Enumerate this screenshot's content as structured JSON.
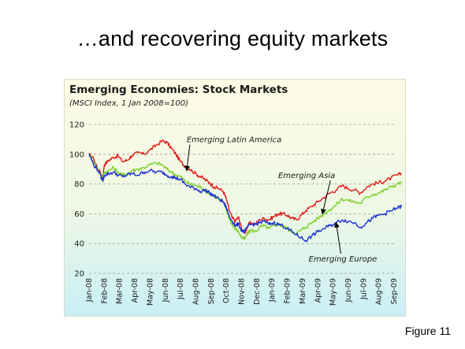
{
  "slide": {
    "title": "…and recovering equity markets",
    "figure_label": "Figure 11"
  },
  "colors": {
    "latin_america": "#e01a1a",
    "asia": "#7fcf2a",
    "europe": "#1a2fd0",
    "grid": "#9a9a9a"
  },
  "chart_data": {
    "type": "line",
    "title": "Emerging Economies: Stock Markets",
    "subtitle": "(MSCI Index, 1 Jan 2008=100)",
    "ylim": [
      20,
      120
    ],
    "yticks": [
      20,
      40,
      60,
      80,
      100,
      120
    ],
    "grid": true,
    "categories": [
      "Jan-08",
      "Feb-08",
      "Mar-08",
      "Apr-08",
      "May-08",
      "Jun-08",
      "Jul-08",
      "Aug-08",
      "Sep-08",
      "Oct-08",
      "Nov-08",
      "Dec-08",
      "Jan-09",
      "Feb-09",
      "Mar-09",
      "Apr-09",
      "May-09",
      "Jun-09",
      "Jul-09",
      "Aug-09",
      "Sep-09"
    ],
    "series": [
      {
        "name": "Emerging Latin America",
        "color_key": "latin_america",
        "values": [
          [
            0,
            100
          ],
          [
            0.3,
            97
          ],
          [
            0.6,
            90
          ],
          [
            0.9,
            85
          ],
          [
            1.0,
            93
          ],
          [
            1.3,
            96
          ],
          [
            1.6,
            98
          ],
          [
            1.9,
            99
          ],
          [
            2.2,
            95
          ],
          [
            2.5,
            96
          ],
          [
            2.8,
            99
          ],
          [
            3.2,
            101
          ],
          [
            3.6,
            100
          ],
          [
            4.0,
            103
          ],
          [
            4.4,
            106
          ],
          [
            4.8,
            109
          ],
          [
            5.1,
            108
          ],
          [
            5.4,
            104
          ],
          [
            5.7,
            100
          ],
          [
            6.0,
            95
          ],
          [
            6.3,
            92
          ],
          [
            6.6,
            90
          ],
          [
            7.0,
            87
          ],
          [
            7.3,
            85
          ],
          [
            7.6,
            83
          ],
          [
            7.9,
            81
          ],
          [
            8.2,
            78
          ],
          [
            8.5,
            77
          ],
          [
            8.8,
            75
          ],
          [
            9.0,
            70
          ],
          [
            9.2,
            62
          ],
          [
            9.4,
            57
          ],
          [
            9.6,
            55
          ],
          [
            9.8,
            58
          ],
          [
            10.0,
            50
          ],
          [
            10.2,
            47
          ],
          [
            10.4,
            52
          ],
          [
            10.6,
            54
          ],
          [
            10.9,
            53
          ],
          [
            11.2,
            56
          ],
          [
            11.5,
            57
          ],
          [
            11.8,
            56
          ],
          [
            12.1,
            58
          ],
          [
            12.4,
            60
          ],
          [
            12.7,
            60
          ],
          [
            13.0,
            59
          ],
          [
            13.3,
            57
          ],
          [
            13.6,
            56
          ],
          [
            13.9,
            59
          ],
          [
            14.2,
            62
          ],
          [
            14.6,
            65
          ],
          [
            15.0,
            68
          ],
          [
            15.4,
            71
          ],
          [
            15.8,
            74
          ],
          [
            16.2,
            76
          ],
          [
            16.6,
            79
          ],
          [
            17.0,
            77
          ],
          [
            17.4,
            76
          ],
          [
            17.8,
            74
          ],
          [
            18.2,
            78
          ],
          [
            18.6,
            80
          ],
          [
            19.0,
            81
          ],
          [
            19.4,
            82
          ],
          [
            19.8,
            84
          ],
          [
            20.2,
            86
          ],
          [
            20.5,
            87
          ]
        ]
      },
      {
        "name": "Emerging Asia",
        "color_key": "asia",
        "values": [
          [
            0,
            100
          ],
          [
            0.3,
            95
          ],
          [
            0.6,
            90
          ],
          [
            0.9,
            84
          ],
          [
            1.0,
            88
          ],
          [
            1.3,
            89
          ],
          [
            1.6,
            91
          ],
          [
            1.9,
            88
          ],
          [
            2.2,
            86
          ],
          [
            2.5,
            87
          ],
          [
            2.8,
            89
          ],
          [
            3.2,
            90
          ],
          [
            3.6,
            91
          ],
          [
            4.0,
            93
          ],
          [
            4.4,
            94
          ],
          [
            4.8,
            93
          ],
          [
            5.1,
            90
          ],
          [
            5.4,
            88
          ],
          [
            5.7,
            86
          ],
          [
            6.0,
            85
          ],
          [
            6.3,
            82
          ],
          [
            6.6,
            80
          ],
          [
            7.0,
            79
          ],
          [
            7.3,
            78
          ],
          [
            7.6,
            76
          ],
          [
            7.9,
            74
          ],
          [
            8.2,
            72
          ],
          [
            8.5,
            70
          ],
          [
            8.8,
            68
          ],
          [
            9.0,
            63
          ],
          [
            9.2,
            57
          ],
          [
            9.4,
            52
          ],
          [
            9.6,
            50
          ],
          [
            9.8,
            48
          ],
          [
            10.0,
            44
          ],
          [
            10.2,
            43
          ],
          [
            10.4,
            47
          ],
          [
            10.6,
            49
          ],
          [
            10.9,
            48
          ],
          [
            11.2,
            51
          ],
          [
            11.5,
            52
          ],
          [
            11.8,
            50
          ],
          [
            12.1,
            52
          ],
          [
            12.4,
            53
          ],
          [
            12.7,
            52
          ],
          [
            13.0,
            50
          ],
          [
            13.3,
            48
          ],
          [
            13.6,
            47
          ],
          [
            13.9,
            49
          ],
          [
            14.2,
            51
          ],
          [
            14.6,
            54
          ],
          [
            15.0,
            57
          ],
          [
            15.4,
            60
          ],
          [
            15.8,
            63
          ],
          [
            16.2,
            66
          ],
          [
            16.6,
            70
          ],
          [
            17.0,
            69
          ],
          [
            17.4,
            68
          ],
          [
            17.8,
            67
          ],
          [
            18.2,
            71
          ],
          [
            18.6,
            73
          ],
          [
            19.0,
            74
          ],
          [
            19.4,
            76
          ],
          [
            19.8,
            78
          ],
          [
            20.2,
            80
          ],
          [
            20.5,
            81
          ]
        ]
      },
      {
        "name": "Emerging Europe",
        "color_key": "europe",
        "values": [
          [
            0,
            100
          ],
          [
            0.3,
            93
          ],
          [
            0.6,
            89
          ],
          [
            0.9,
            82
          ],
          [
            1.0,
            86
          ],
          [
            1.3,
            87
          ],
          [
            1.6,
            88
          ],
          [
            1.9,
            86
          ],
          [
            2.2,
            85
          ],
          [
            2.5,
            86
          ],
          [
            2.8,
            87
          ],
          [
            3.2,
            86
          ],
          [
            3.6,
            88
          ],
          [
            4.0,
            89
          ],
          [
            4.4,
            88
          ],
          [
            4.8,
            88
          ],
          [
            5.1,
            86
          ],
          [
            5.4,
            85
          ],
          [
            5.7,
            84
          ],
          [
            6.0,
            83
          ],
          [
            6.3,
            80
          ],
          [
            6.6,
            78
          ],
          [
            7.0,
            77
          ],
          [
            7.3,
            75
          ],
          [
            7.6,
            76
          ],
          [
            7.9,
            74
          ],
          [
            8.2,
            72
          ],
          [
            8.5,
            70
          ],
          [
            8.8,
            68
          ],
          [
            9.0,
            64
          ],
          [
            9.2,
            58
          ],
          [
            9.4,
            55
          ],
          [
            9.6,
            52
          ],
          [
            9.8,
            53
          ],
          [
            10.0,
            49
          ],
          [
            10.2,
            48
          ],
          [
            10.4,
            51
          ],
          [
            10.6,
            53
          ],
          [
            10.9,
            53
          ],
          [
            11.2,
            54
          ],
          [
            11.5,
            55
          ],
          [
            11.8,
            53
          ],
          [
            12.1,
            54
          ],
          [
            12.4,
            53
          ],
          [
            12.7,
            52
          ],
          [
            13.0,
            50
          ],
          [
            13.3,
            48
          ],
          [
            13.6,
            46
          ],
          [
            13.9,
            44
          ],
          [
            14.2,
            42
          ],
          [
            14.6,
            45
          ],
          [
            15.0,
            48
          ],
          [
            15.4,
            50
          ],
          [
            15.8,
            52
          ],
          [
            16.2,
            54
          ],
          [
            16.6,
            56
          ],
          [
            17.0,
            55
          ],
          [
            17.4,
            54
          ],
          [
            17.8,
            51
          ],
          [
            18.2,
            54
          ],
          [
            18.6,
            57
          ],
          [
            19.0,
            59
          ],
          [
            19.4,
            60
          ],
          [
            19.8,
            62
          ],
          [
            20.2,
            64
          ],
          [
            20.5,
            65
          ]
        ]
      }
    ],
    "annotations": [
      {
        "label": "Emerging Latin America",
        "series": "Emerging Latin America",
        "text_x": 6.4,
        "text_y": 108,
        "arrow_x": 6.4,
        "arrow_y": 89
      },
      {
        "label": "Emerging Asia",
        "series": "Emerging Asia",
        "text_x": 12.4,
        "text_y": 84,
        "arrow_x": 15.3,
        "arrow_y": 60
      },
      {
        "label": "Emerging Europe",
        "series": "Emerging Europe",
        "text_x": 14.4,
        "text_y": 28,
        "arrow_x": 16.2,
        "arrow_y": 54
      }
    ]
  }
}
